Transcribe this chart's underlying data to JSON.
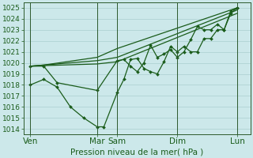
{
  "background_color": "#cce8ea",
  "grid_color": "#aacfcf",
  "line_color": "#1a5c1a",
  "title": "Pression niveau de la mer( hPa )",
  "ylabel_fontsize": 6.5,
  "xlabel_fontsize": 7.5,
  "ylim": [
    1013.5,
    1025.5
  ],
  "yticks": [
    1014,
    1015,
    1016,
    1017,
    1018,
    1019,
    1020,
    1021,
    1022,
    1023,
    1024,
    1025
  ],
  "xtick_labels": [
    "Ven",
    "Mar",
    "Sam",
    "Dim",
    "Lun"
  ],
  "xtick_positions": [
    0.5,
    5.5,
    7.0,
    11.5,
    16.0
  ],
  "vline_positions": [
    0.5,
    5.5,
    7.0,
    11.5,
    16.0
  ],
  "xlim": [
    0,
    17.0
  ],
  "lines": [
    {
      "x": [
        0.5,
        1.5,
        2.5,
        3.5,
        4.5,
        5.5,
        6.0,
        7.0,
        7.5,
        8.0,
        8.5,
        9.0,
        9.5,
        10.0,
        10.5,
        11.0,
        11.5,
        12.0,
        12.5,
        13.0,
        13.5,
        14.0,
        14.5,
        15.0,
        15.5,
        16.0
      ],
      "y": [
        1018.0,
        1018.5,
        1017.8,
        1016.0,
        1015.0,
        1014.2,
        1014.2,
        1017.3,
        1018.5,
        1020.3,
        1020.4,
        1019.5,
        1019.2,
        1019.0,
        1020.1,
        1021.5,
        1021.0,
        1021.5,
        1021.0,
        1021.0,
        1022.2,
        1022.2,
        1023.0,
        1023.0,
        1024.5,
        1025.0
      ],
      "marker": "D",
      "markersize": 2.0,
      "linewidth": 0.9
    },
    {
      "x": [
        0.5,
        1.5,
        2.5,
        5.5,
        7.0,
        7.5,
        8.0,
        8.5,
        9.0,
        9.5,
        10.0,
        10.5,
        11.0,
        11.5,
        12.0,
        12.5,
        13.0,
        13.5,
        14.0,
        14.5,
        15.0,
        15.5,
        16.0
      ],
      "y": [
        1019.7,
        1019.7,
        1018.2,
        1017.5,
        1020.2,
        1020.3,
        1019.7,
        1019.2,
        1020.0,
        1021.6,
        1020.5,
        1020.8,
        1021.2,
        1020.5,
        1021.0,
        1022.1,
        1023.3,
        1023.0,
        1023.0,
        1023.5,
        1023.0,
        1024.7,
        1025.0
      ],
      "marker": "D",
      "markersize": 2.0,
      "linewidth": 0.9
    },
    {
      "x": [
        0.5,
        1.5,
        5.5,
        7.0,
        16.0
      ],
      "y": [
        1019.7,
        1019.8,
        1020.5,
        1021.3,
        1025.0
      ],
      "marker": null,
      "markersize": 0,
      "linewidth": 0.9
    },
    {
      "x": [
        0.5,
        1.5,
        5.5,
        7.0,
        16.0
      ],
      "y": [
        1019.7,
        1019.8,
        1020.2,
        1020.5,
        1024.8
      ],
      "marker": null,
      "markersize": 0,
      "linewidth": 0.9
    },
    {
      "x": [
        0.5,
        1.5,
        5.5,
        7.0,
        16.0
      ],
      "y": [
        1019.7,
        1019.75,
        1019.9,
        1020.1,
        1024.5
      ],
      "marker": null,
      "markersize": 0,
      "linewidth": 0.9
    }
  ]
}
